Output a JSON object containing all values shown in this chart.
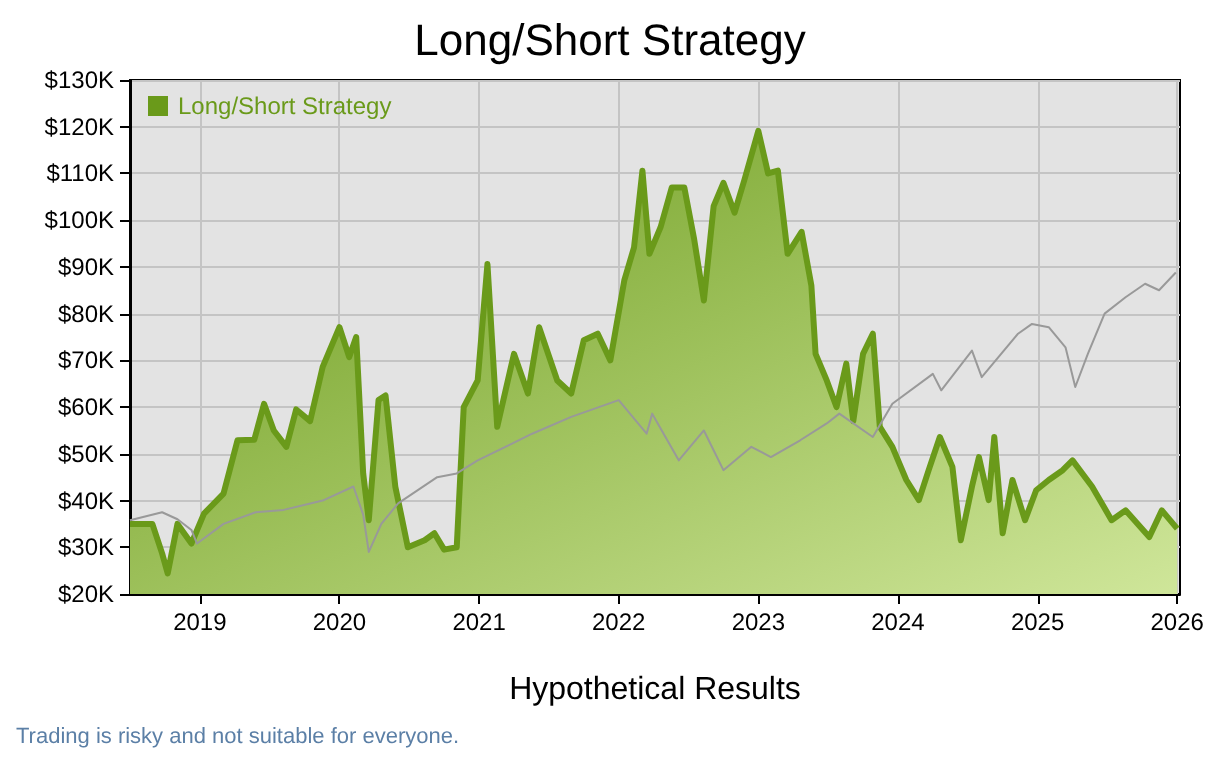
{
  "chart_data": {
    "type": "area",
    "title": "Long/Short Strategy",
    "xlabel": "Hypothetical Results",
    "annotations": [
      "Trading is risky and not suitable for everyone."
    ],
    "legend": "top left",
    "grid": true,
    "xlim": [
      2018.5,
      2026.02
    ],
    "xticks": [
      2019,
      2020,
      2021,
      2022,
      2023,
      2024,
      2025,
      2026
    ],
    "ylim": [
      20000,
      130000
    ],
    "yticks": [
      {
        "value": 20000,
        "label": "$20K"
      },
      {
        "value": 30000,
        "label": "$30K"
      },
      {
        "value": 40000,
        "label": "$40K"
      },
      {
        "value": 50000,
        "label": "$50K"
      },
      {
        "value": 60000,
        "label": "$60K"
      },
      {
        "value": 70000,
        "label": "$70K"
      },
      {
        "value": 80000,
        "label": "$80K"
      },
      {
        "value": 90000,
        "label": "$90K"
      },
      {
        "value": 100000,
        "label": "$100K"
      },
      {
        "value": 110000,
        "label": "$110K"
      },
      {
        "value": 120000,
        "label": "$120K"
      },
      {
        "value": 130000,
        "label": "$130K"
      }
    ],
    "series": [
      {
        "name": "Long/Short Strategy",
        "color": "#6a9a1a",
        "x": [
          2018.5,
          2018.66,
          2018.73,
          2018.77,
          2018.84,
          2018.94,
          2019.03,
          2019.17,
          2019.27,
          2019.39,
          2019.46,
          2019.53,
          2019.62,
          2019.69,
          2019.79,
          2019.88,
          2020.0,
          2020.07,
          2020.12,
          2020.17,
          2020.21,
          2020.28,
          2020.33,
          2020.4,
          2020.49,
          2020.61,
          2020.68,
          2020.75,
          2020.84,
          2020.89,
          2020.99,
          2021.06,
          2021.13,
          2021.25,
          2021.35,
          2021.43,
          2021.56,
          2021.66,
          2021.75,
          2021.85,
          2021.94,
          2022.04,
          2022.11,
          2022.17,
          2022.22,
          2022.3,
          2022.38,
          2022.47,
          2022.54,
          2022.61,
          2022.68,
          2022.75,
          2022.83,
          2022.9,
          2023.0,
          2023.07,
          2023.14,
          2023.21,
          2023.31,
          2023.38,
          2023.41,
          2023.49,
          2023.56,
          2023.63,
          2023.68,
          2023.75,
          2023.82,
          2023.87,
          2023.96,
          2024.06,
          2024.15,
          2024.22,
          2024.3,
          2024.39,
          2024.45,
          2024.53,
          2024.58,
          2024.65,
          2024.69,
          2024.75,
          2024.82,
          2024.91,
          2024.99,
          2025.08,
          2025.18,
          2025.25,
          2025.39,
          2025.53,
          2025.63,
          2025.8,
          2025.89,
          2026.0
        ],
        "values": [
          35000,
          35000,
          28700,
          24400,
          35000,
          30800,
          37200,
          41500,
          52900,
          53000,
          60700,
          55000,
          51500,
          59500,
          57000,
          68600,
          77100,
          70700,
          75000,
          45800,
          35800,
          61500,
          62500,
          43000,
          30000,
          31500,
          33000,
          29500,
          30000,
          60000,
          65700,
          90600,
          55800,
          71400,
          62900,
          77100,
          65700,
          62900,
          74300,
          75700,
          70000,
          87100,
          94200,
          110600,
          92800,
          98500,
          107000,
          107000,
          96000,
          82800,
          103000,
          108000,
          101600,
          108600,
          119100,
          110000,
          110600,
          92800,
          97500,
          86000,
          71400,
          65700,
          60000,
          69300,
          57000,
          71400,
          75700,
          55800,
          51500,
          44400,
          40100,
          46500,
          53600,
          47200,
          31500,
          43000,
          49300,
          40100,
          53600,
          33000,
          44400,
          35800,
          42200,
          44400,
          46500,
          48600,
          43000,
          35800,
          37900,
          32200,
          37900,
          34000
        ]
      },
      {
        "type": "line",
        "color": "#999999",
        "x": [
          2018.5,
          2018.73,
          2018.84,
          2018.94,
          2018.98,
          2019.17,
          2019.4,
          2019.6,
          2019.88,
          2020.1,
          2020.17,
          2020.21,
          2020.3,
          2020.42,
          2020.7,
          2020.84,
          2020.99,
          2021.38,
          2021.66,
          2022.0,
          2022.2,
          2022.24,
          2022.43,
          2022.61,
          2022.75,
          2022.95,
          2023.09,
          2023.3,
          2023.49,
          2023.58,
          2023.82,
          2023.96,
          2024.25,
          2024.31,
          2024.53,
          2024.6,
          2024.86,
          2024.96,
          2025.08,
          2025.2,
          2025.27,
          2025.36,
          2025.48,
          2025.63,
          2025.77,
          2025.87,
          2025.99
        ],
        "values": [
          35800,
          37500,
          36000,
          33700,
          30800,
          35000,
          37500,
          38000,
          40000,
          43000,
          37000,
          29000,
          35000,
          39400,
          45000,
          45800,
          48600,
          54300,
          57900,
          61500,
          54300,
          58600,
          48600,
          55000,
          46500,
          51500,
          49300,
          52900,
          56500,
          58600,
          53600,
          60700,
          67100,
          63600,
          72100,
          66400,
          75700,
          77800,
          77100,
          72800,
          64300,
          71400,
          80000,
          83500,
          86400,
          85000,
          88800
        ]
      }
    ]
  }
}
